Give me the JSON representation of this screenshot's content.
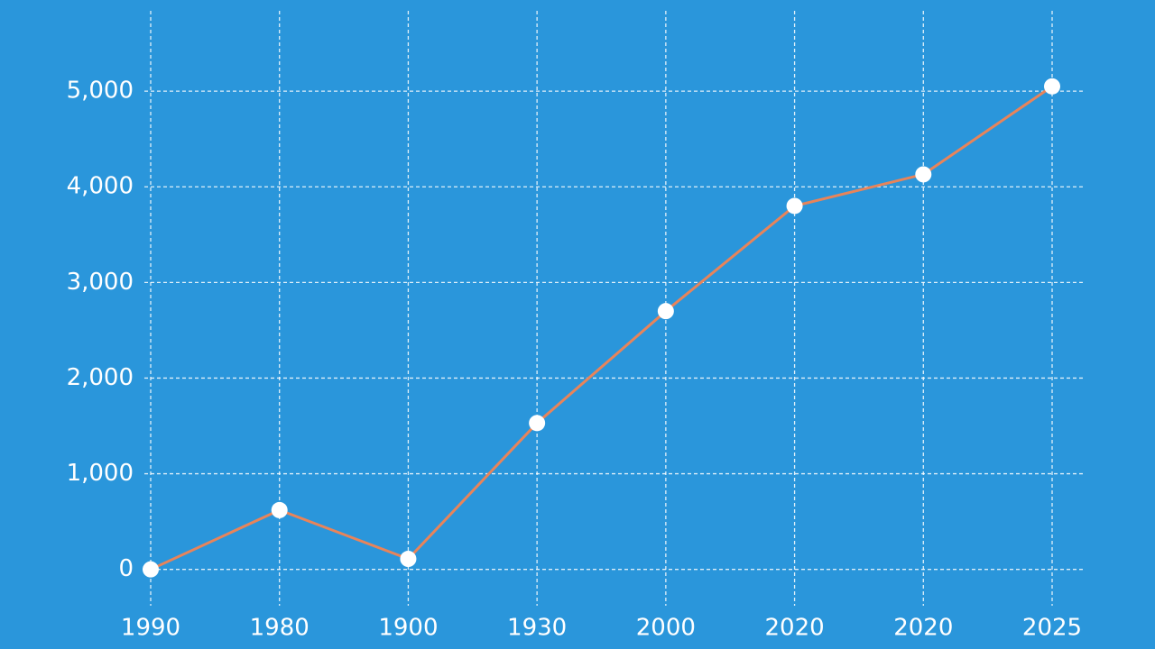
{
  "chart_data": {
    "type": "line",
    "categories": [
      "1990",
      "1980",
      "1900",
      "1930",
      "2000",
      "2020",
      "2020",
      "2025"
    ],
    "series": [
      {
        "color": "#e8845a",
        "values": [
          0,
          620,
          110,
          1530,
          2700,
          3800,
          4130,
          5050
        ]
      }
    ],
    "ylim": [
      -380,
      5840
    ],
    "yticks": [
      0,
      {
        "value": 1000,
        "label": "1,000"
      },
      {
        "value": 2000,
        "label": "2,000"
      },
      {
        "value": 3000,
        "label": "3,000"
      },
      {
        "value": 4000,
        "label": "4,000"
      },
      {
        "value": 5000,
        "label": "5,000"
      }
    ],
    "grid": true
  }
}
